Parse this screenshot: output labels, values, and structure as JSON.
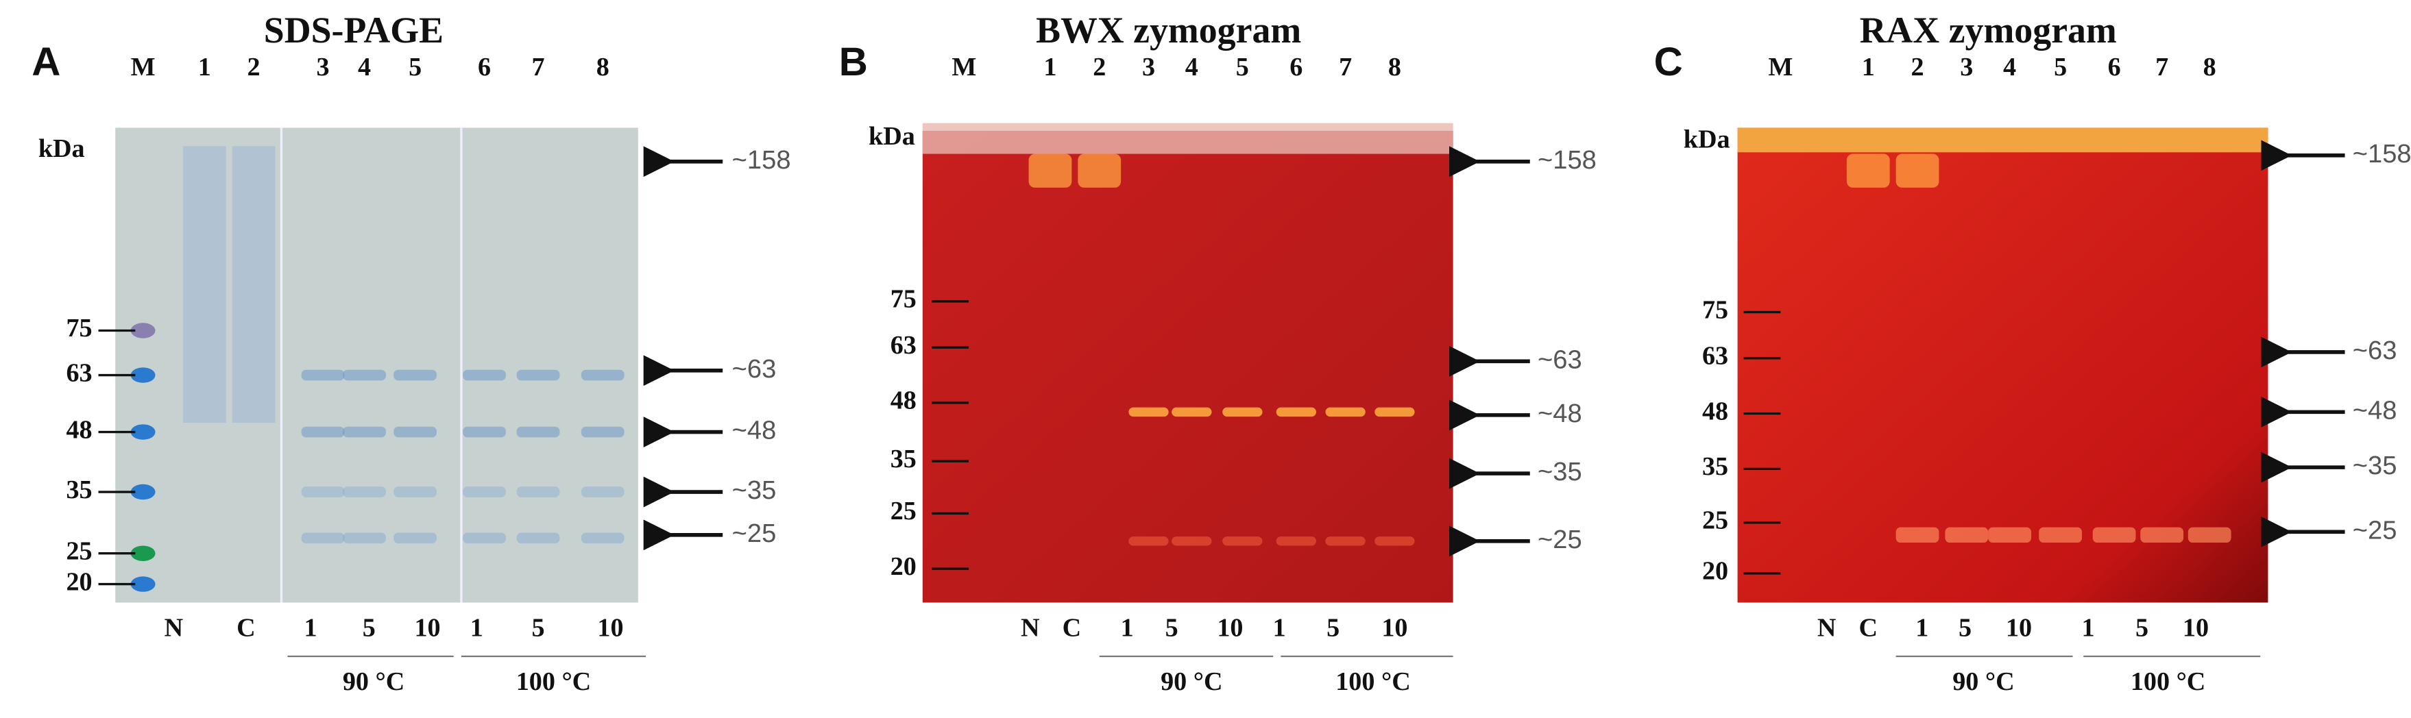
{
  "panels": [
    {
      "letter": "A",
      "title": "SDS-PAGE",
      "kda": "kDa",
      "lanes": [
        "M",
        "1",
        "2",
        "3",
        "4",
        "5",
        "6",
        "7",
        "8"
      ],
      "markers": [
        "75",
        "63",
        "48",
        "35",
        "25",
        "20"
      ],
      "sizes": [
        "~158",
        "~63",
        "~48",
        "~35",
        "~25"
      ],
      "bottom": [
        "N",
        "C",
        "1",
        "5",
        "10",
        "1",
        "5",
        "10"
      ],
      "groups": [
        "90 °C",
        "100 °C"
      ]
    },
    {
      "letter": "B",
      "title": "BWX zymogram",
      "kda": "kDa",
      "lanes": [
        "M",
        "1",
        "2",
        "3",
        "4",
        "5",
        "6",
        "7",
        "8"
      ],
      "markers": [
        "75",
        "63",
        "48",
        "35",
        "25",
        "20"
      ],
      "sizes": [
        "~158",
        "~63",
        "~48",
        "~35",
        "~25"
      ],
      "bottom": [
        "N",
        "C",
        "1",
        "5",
        "10",
        "1",
        "5",
        "10"
      ],
      "groups": [
        "90 °C",
        "100 °C"
      ]
    },
    {
      "letter": "C",
      "title": "RAX zymogram",
      "kda": "kDa",
      "lanes": [
        "M",
        "1",
        "2",
        "3",
        "4",
        "5",
        "6",
        "7",
        "8"
      ],
      "markers": [
        "75",
        "63",
        "48",
        "35",
        "25",
        "20"
      ],
      "sizes": [
        "~158",
        "~63",
        "~48",
        "~35",
        "~25"
      ],
      "bottom": [
        "N",
        "C",
        "1",
        "5",
        "10",
        "1",
        "5",
        "10"
      ],
      "groups": [
        "90 °C",
        "100 °C"
      ]
    }
  ]
}
